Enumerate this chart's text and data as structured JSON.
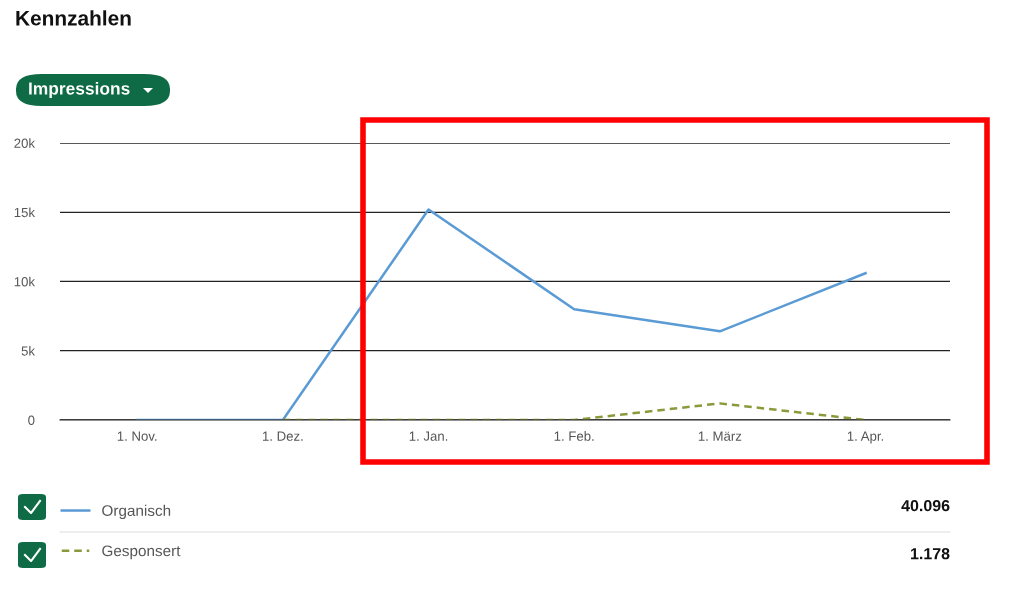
{
  "chart_data": {
    "type": "line",
    "title": "Kennzahlen",
    "categories": [
      "1. Nov.",
      "1. Dez.",
      "1. Jan.",
      "1. Feb.",
      "1. März",
      "1. Apr."
    ],
    "series": [
      {
        "name": "Organisch",
        "color": "#5b9bd5",
        "line_style": "solid",
        "values": [
          0,
          0,
          15200,
          8000,
          6400,
          10600
        ]
      },
      {
        "name": "Gesponsert",
        "color": "#8a9a3a",
        "line_style": "dashed",
        "values": [
          null,
          0,
          0,
          0,
          1200,
          0
        ]
      }
    ],
    "ylim": [
      0,
      20000
    ],
    "yticks": [
      {
        "value": 0,
        "label": "0"
      },
      {
        "value": 5000,
        "label": "5k"
      },
      {
        "value": 10000,
        "label": "10k"
      },
      {
        "value": 15000,
        "label": "15k"
      },
      {
        "value": 20000,
        "label": "20k"
      }
    ],
    "grid": "y",
    "legend": "bottom",
    "marker": "none",
    "annotations": [
      "Impressions",
      "40.096",
      "1.178"
    ]
  }
}
